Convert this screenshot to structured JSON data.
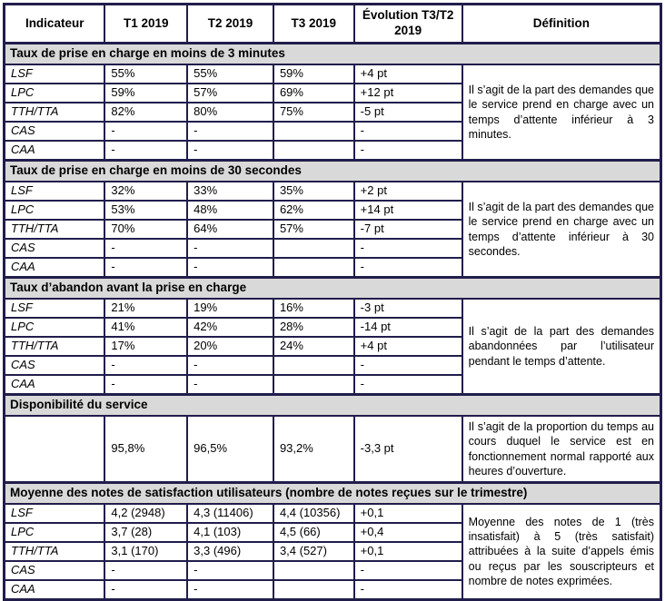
{
  "page": {
    "background": "#FFFFFF"
  },
  "table": {
    "border_color": "#211D4B",
    "section_header_bg": "#D9D9D9",
    "header": {
      "indicateur": "Indicateur",
      "t1": "T1 2019",
      "t2": "T2 2019",
      "t3": "T3 2019",
      "evolution": "Évolution T3/T2 2019",
      "definition": "Définition"
    },
    "sections": [
      {
        "title": "Taux de prise en charge en moins de 3 minutes",
        "definition": "Il s’agit de la part des demandes que le service prend en charge avec un temps d’attente inférieur à 3 minutes.",
        "rows": [
          {
            "label": "LSF",
            "t1": "55%",
            "t2": "55%",
            "t3": "59%",
            "evo": "+4 pt"
          },
          {
            "label": "LPC",
            "t1": "59%",
            "t2": "57%",
            "t3": "69%",
            "evo": "+12 pt"
          },
          {
            "label": "TTH/TTA",
            "t1": "82%",
            "t2": "80%",
            "t3": "75%",
            "evo": "-5 pt"
          },
          {
            "label": "CAS",
            "t1": "-",
            "t2": "-",
            "t3": "",
            "evo": "-"
          },
          {
            "label": "CAA",
            "t1": "-",
            "t2": "-",
            "t3": "",
            "evo": "-"
          }
        ]
      },
      {
        "title": "Taux de prise en charge en moins de 30 secondes",
        "definition": "Il s’agit de la part des demandes que le service prend en charge avec un temps d’attente inférieur à 30 secondes.",
        "rows": [
          {
            "label": "LSF",
            "t1": "32%",
            "t2": "33%",
            "t3": "35%",
            "evo": "+2 pt"
          },
          {
            "label": "LPC",
            "t1": "53%",
            "t2": "48%",
            "t3": "62%",
            "evo": "+14 pt"
          },
          {
            "label": "TTH/TTA",
            "t1": "70%",
            "t2": "64%",
            "t3": "57%",
            "evo": "-7 pt"
          },
          {
            "label": "CAS",
            "t1": "-",
            "t2": "-",
            "t3": "",
            "evo": "-"
          },
          {
            "label": "CAA",
            "t1": "-",
            "t2": "-",
            "t3": "",
            "evo": "-"
          }
        ]
      },
      {
        "title": "Taux d’abandon avant la prise en charge",
        "definition": "Il s’agit de la part des demandes abandonnées par l’utilisateur pendant le temps d’attente.",
        "rows": [
          {
            "label": "LSF",
            "t1": "21%",
            "t2": "19%",
            "t3": "16%",
            "evo": "-3 pt"
          },
          {
            "label": "LPC",
            "t1": "41%",
            "t2": "42%",
            "t3": "28%",
            "evo": "-14 pt"
          },
          {
            "label": "TTH/TTA",
            "t1": "17%",
            "t2": "20%",
            "t3": "24%",
            "evo": "+4 pt"
          },
          {
            "label": "CAS",
            "t1": "-",
            "t2": "-",
            "t3": "",
            "evo": "-"
          },
          {
            "label": "CAA",
            "t1": "-",
            "t2": "-",
            "t3": "",
            "evo": "-"
          }
        ]
      },
      {
        "title": "Disponibilité du service",
        "definition": "Il s’agit de la proportion du temps au cours duquel le service est en fonctionnement normal rapporté aux heures d’ouverture.",
        "tall": true,
        "rows": [
          {
            "label": "",
            "t1": "95,8%",
            "t2": "96,5%",
            "t3": "93,2%",
            "evo": "-3,3 pt"
          }
        ]
      },
      {
        "title": "Moyenne des notes de satisfaction utilisateurs (nombre de notes reçues sur le trimestre)",
        "definition": "Moyenne des notes de 1 (très insatisfait) à 5 (très satisfait) attribuées à la suite d’appels émis ou reçus par les souscripteurs et nombre de notes exprimées.",
        "rows": [
          {
            "label": "LSF",
            "t1": "4,2 (2948)",
            "t2": "4,3 (11406)",
            "t3": "4,4 (10356)",
            "evo": "+0,1"
          },
          {
            "label": "LPC",
            "t1": "3,7 (28)",
            "t2": "4,1 (103)",
            "t3": "4,5 (66)",
            "evo": "+0,4"
          },
          {
            "label": "TTH/TTA",
            "t1": "3,1 (170)",
            "t2": "3,3 (496)",
            "t3": "3,4 (527)",
            "evo": "+0,1"
          },
          {
            "label": "CAS",
            "t1": "-",
            "t2": "-",
            "t3": "",
            "evo": "-"
          },
          {
            "label": "CAA",
            "t1": "-",
            "t2": "-",
            "t3": "",
            "evo": "-"
          }
        ]
      }
    ]
  }
}
